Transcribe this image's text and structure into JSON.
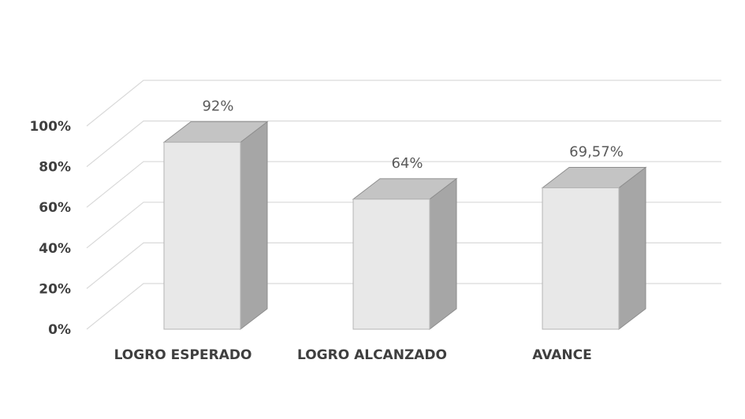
{
  "chart_data": {
    "type": "bar",
    "title": "",
    "xlabel": "",
    "ylabel": "",
    "categories": [
      "LOGRO ESPERADO",
      "LOGRO ALCANZADO",
      "AVANCE"
    ],
    "values": [
      92,
      64,
      69.57
    ],
    "data_labels": [
      "92%",
      "64%",
      "69,57%"
    ],
    "ylim": [
      0,
      100
    ],
    "y_ticks": [
      0,
      20,
      40,
      60,
      80,
      100
    ],
    "y_tick_labels": [
      "0%",
      "20%",
      "40%",
      "60%",
      "80%",
      "100%"
    ],
    "grid": true,
    "legend": "none",
    "style": "3d-column",
    "colors": {
      "front": "#e8e8e8",
      "side": "#a6a6a6",
      "top": "#c4c4c4",
      "grid": "#d9d9d9",
      "text": "#3f3f3f"
    }
  }
}
